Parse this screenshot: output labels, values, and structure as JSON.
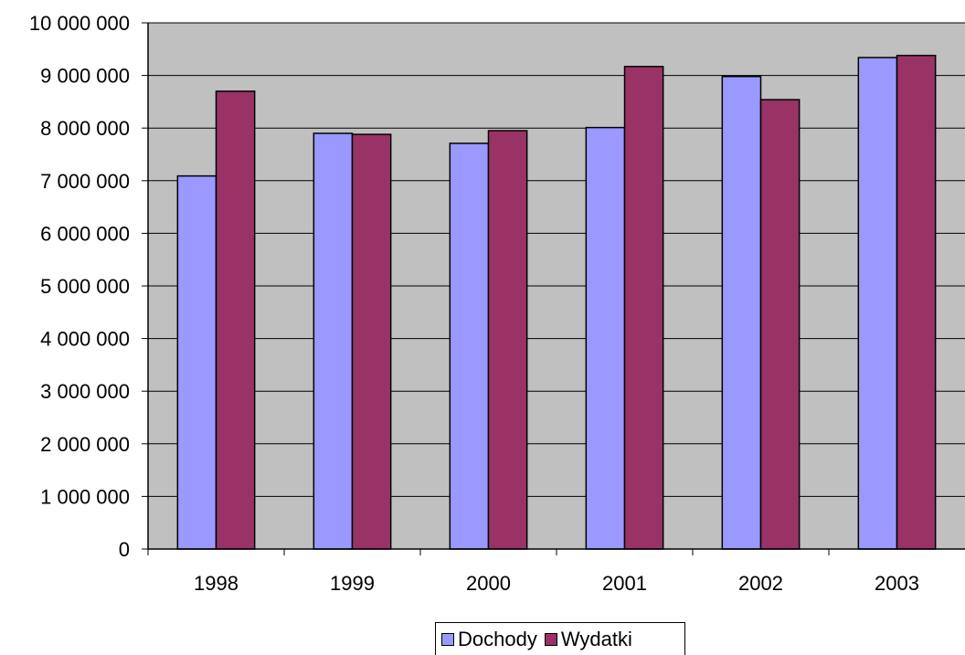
{
  "chart_data": {
    "type": "bar",
    "categories": [
      "1998",
      "1999",
      "2000",
      "2001",
      "2002",
      "2003"
    ],
    "series": [
      {
        "name": "Dochody",
        "color": "#9999ff",
        "values": [
          7090000,
          7900000,
          7710000,
          8010000,
          8980000,
          9340000
        ]
      },
      {
        "name": "Wydatki",
        "color": "#993366",
        "values": [
          8700000,
          7880000,
          7950000,
          9170000,
          8540000,
          9380000
        ]
      }
    ],
    "title": "",
    "xlabel": "",
    "ylabel": "",
    "ylim": [
      0,
      10000000
    ],
    "yticks": [
      0,
      1000000,
      2000000,
      3000000,
      4000000,
      5000000,
      6000000,
      7000000,
      8000000,
      9000000,
      10000000
    ],
    "ytick_labels": [
      "0",
      "1 000 000",
      "2 000 000",
      "3 000 000",
      "4 000 000",
      "5 000 000",
      "6 000 000",
      "7 000 000",
      "8 000 000",
      "9 000 000",
      "10 000 000"
    ],
    "grid": true,
    "plot_background": "#c0c0c0",
    "legend_position": "bottom"
  }
}
